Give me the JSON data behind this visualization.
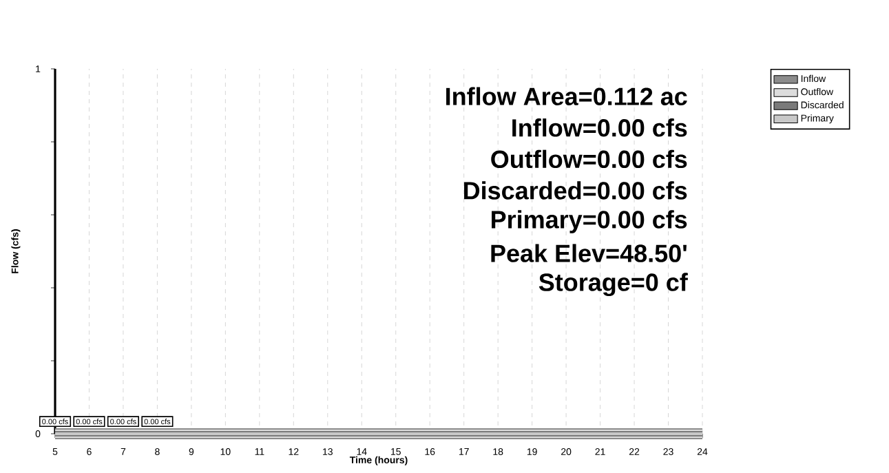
{
  "chart_data": {
    "type": "line",
    "xlabel": "Time  (hours)",
    "ylabel": "Flow  (cfs)",
    "x": [
      5,
      6,
      7,
      8,
      9,
      10,
      11,
      12,
      13,
      14,
      15,
      16,
      17,
      18,
      19,
      20,
      21,
      22,
      23,
      24
    ],
    "series": [
      {
        "name": "Inflow",
        "color": "#8c8c8c",
        "values": [
          0,
          0,
          0,
          0,
          0,
          0,
          0,
          0,
          0,
          0,
          0,
          0,
          0,
          0,
          0,
          0,
          0,
          0,
          0,
          0
        ],
        "value_labels": [
          "0.00 cfs",
          null,
          null,
          null,
          null,
          null,
          null,
          null,
          null,
          null,
          null,
          null,
          null,
          null,
          null,
          null,
          null,
          null,
          null,
          null
        ]
      },
      {
        "name": "Outflow",
        "color": "#dcdcdc",
        "values": [
          0,
          0,
          0,
          0,
          0,
          0,
          0,
          0,
          0,
          0,
          0,
          0,
          0,
          0,
          0,
          0,
          0,
          0,
          0,
          0
        ],
        "value_labels": [
          null,
          "0.00 cfs",
          null,
          null,
          null,
          null,
          null,
          null,
          null,
          null,
          null,
          null,
          null,
          null,
          null,
          null,
          null,
          null,
          null,
          null
        ]
      },
      {
        "name": "Discarded",
        "color": "#7a7a7a",
        "values": [
          0,
          0,
          0,
          0,
          0,
          0,
          0,
          0,
          0,
          0,
          0,
          0,
          0,
          0,
          0,
          0,
          0,
          0,
          0,
          0
        ],
        "value_labels": [
          null,
          null,
          "0.00 cfs",
          null,
          null,
          null,
          null,
          null,
          null,
          null,
          null,
          null,
          null,
          null,
          null,
          null,
          null,
          null,
          null,
          null
        ]
      },
      {
        "name": "Primary",
        "color": "#c8c8c8",
        "values": [
          0,
          0,
          0,
          0,
          0,
          0,
          0,
          0,
          0,
          0,
          0,
          0,
          0,
          0,
          0,
          0,
          0,
          0,
          0,
          0
        ],
        "value_labels": [
          null,
          null,
          null,
          "0.00 cfs",
          null,
          null,
          null,
          null,
          null,
          null,
          null,
          null,
          null,
          null,
          null,
          null,
          null,
          null,
          null,
          null
        ]
      }
    ],
    "xlim": [
      5,
      24
    ],
    "xticks": [
      5,
      6,
      7,
      8,
      9,
      10,
      11,
      12,
      13,
      14,
      15,
      16,
      17,
      18,
      19,
      20,
      21,
      22,
      23,
      24
    ],
    "ylim": [
      0,
      1
    ],
    "yticks": [
      0,
      {
        "value": 0.2,
        "label": null
      },
      {
        "value": 0.4,
        "label": null
      },
      {
        "value": 0.6,
        "label": null
      },
      {
        "value": 0.8,
        "label": null
      },
      1
    ],
    "grid": "x",
    "legend": "top right",
    "annotations": [
      "Inflow Area=0.112 ac",
      "Inflow=0.00 cfs",
      "Outflow=0.00 cfs",
      "Discarded=0.00 cfs",
      "Primary=0.00 cfs",
      "Peak Elev=48.50'",
      "Storage=0 cf"
    ]
  }
}
